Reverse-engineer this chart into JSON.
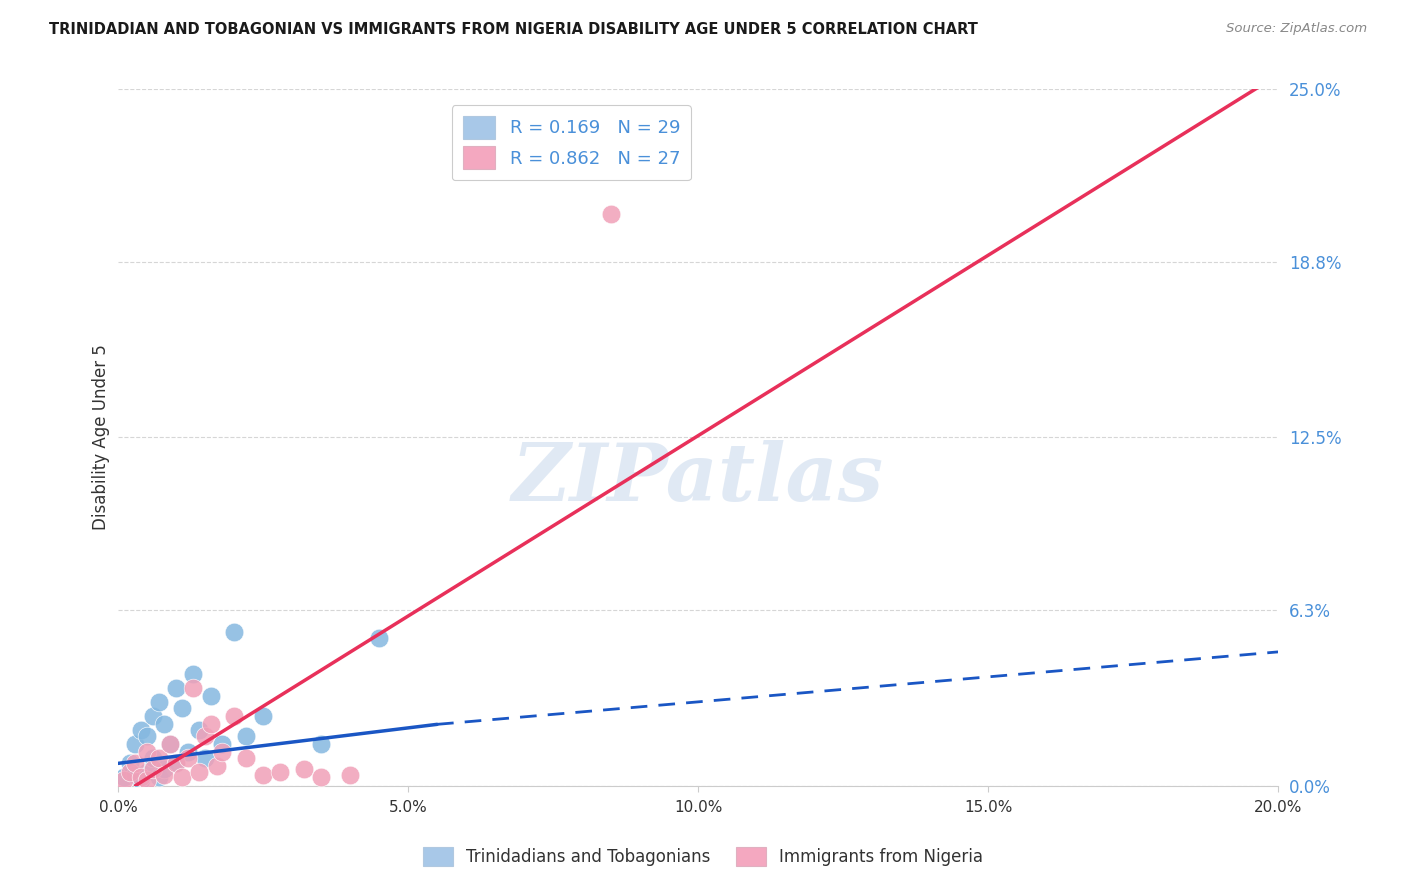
{
  "title": "TRINIDADIAN AND TOBAGONIAN VS IMMIGRANTS FROM NIGERIA DISABILITY AGE UNDER 5 CORRELATION CHART",
  "source": "Source: ZipAtlas.com",
  "xlabel_tick_vals": [
    0.0,
    5.0,
    10.0,
    15.0,
    20.0
  ],
  "ylabel_tick_vals": [
    0.0,
    6.3,
    12.5,
    18.8,
    25.0
  ],
  "xmin": 0.0,
  "xmax": 20.0,
  "ymin": 0.0,
  "ymax": 25.0,
  "ylabel": "Disability Age Under 5",
  "legend_label1": "Trinidadians and Tobagonians",
  "legend_label2": "Immigrants from Nigeria",
  "blue_scatter": [
    [
      0.1,
      0.3
    ],
    [
      0.2,
      0.8
    ],
    [
      0.3,
      1.5
    ],
    [
      0.3,
      0.4
    ],
    [
      0.4,
      2.0
    ],
    [
      0.4,
      0.2
    ],
    [
      0.5,
      1.8
    ],
    [
      0.5,
      0.5
    ],
    [
      0.6,
      2.5
    ],
    [
      0.6,
      1.0
    ],
    [
      0.7,
      3.0
    ],
    [
      0.7,
      0.3
    ],
    [
      0.8,
      2.2
    ],
    [
      0.8,
      0.6
    ],
    [
      0.9,
      1.5
    ],
    [
      1.0,
      3.5
    ],
    [
      1.0,
      0.8
    ],
    [
      1.1,
      2.8
    ],
    [
      1.2,
      1.2
    ],
    [
      1.3,
      4.0
    ],
    [
      1.4,
      2.0
    ],
    [
      1.5,
      1.0
    ],
    [
      1.6,
      3.2
    ],
    [
      1.8,
      1.5
    ],
    [
      2.0,
      5.5
    ],
    [
      2.2,
      1.8
    ],
    [
      2.5,
      2.5
    ],
    [
      3.5,
      1.5
    ],
    [
      4.5,
      5.3
    ]
  ],
  "pink_scatter": [
    [
      0.1,
      0.2
    ],
    [
      0.2,
      0.5
    ],
    [
      0.3,
      0.8
    ],
    [
      0.4,
      0.3
    ],
    [
      0.5,
      1.2
    ],
    [
      0.5,
      0.2
    ],
    [
      0.6,
      0.6
    ],
    [
      0.7,
      1.0
    ],
    [
      0.8,
      0.4
    ],
    [
      0.9,
      1.5
    ],
    [
      1.0,
      0.8
    ],
    [
      1.1,
      0.3
    ],
    [
      1.2,
      1.0
    ],
    [
      1.3,
      3.5
    ],
    [
      1.4,
      0.5
    ],
    [
      1.5,
      1.8
    ],
    [
      1.6,
      2.2
    ],
    [
      1.7,
      0.7
    ],
    [
      1.8,
      1.2
    ],
    [
      2.0,
      2.5
    ],
    [
      2.2,
      1.0
    ],
    [
      2.5,
      0.4
    ],
    [
      2.8,
      0.5
    ],
    [
      3.2,
      0.6
    ],
    [
      3.5,
      0.3
    ],
    [
      8.5,
      20.5
    ],
    [
      4.0,
      0.4
    ]
  ],
  "blue_line_solid": {
    "x": [
      0.0,
      5.5
    ],
    "y": [
      0.8,
      2.2
    ]
  },
  "blue_line_dashed": {
    "x": [
      5.5,
      20.0
    ],
    "y": [
      2.2,
      4.8
    ]
  },
  "pink_line": {
    "x": [
      0.3,
      20.0
    ],
    "y": [
      0.0,
      25.5
    ]
  },
  "watermark": "ZIPatlas",
  "scatter_color_blue": "#85b8e0",
  "scatter_color_pink": "#f0a0b8",
  "line_color_blue": "#1a56c4",
  "line_color_pink": "#e8305a",
  "background_color": "#ffffff",
  "grid_color": "#cccccc",
  "legend_r1": "R = 0.169",
  "legend_n1": "N = 29",
  "legend_r2": "R = 0.862",
  "legend_n2": "N = 27",
  "legend_color1": "#a8c8e8",
  "legend_color2": "#f4a8c0"
}
